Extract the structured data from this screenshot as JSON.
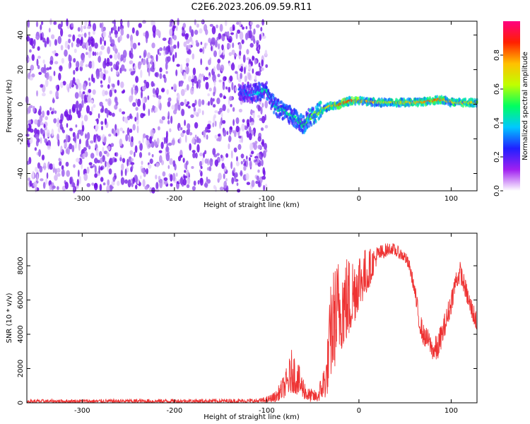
{
  "figure": {
    "title": "C2E6.2023.206.09.59.R11"
  },
  "chart_data": [
    {
      "type": "heatmap",
      "name": "spectrogram",
      "xlabel": "Height of straight line (km)",
      "ylabel": "Frequency (Hz)",
      "xlim": [
        -360,
        128
      ],
      "ylim": [
        -50,
        48
      ],
      "xticks": [
        -300,
        -200,
        -100,
        0,
        100
      ],
      "xtick_labels": [
        "-300",
        "-200",
        "-100",
        "0",
        "100"
      ],
      "yticks": [
        -40,
        -20,
        0,
        20,
        40
      ],
      "ytick_labels": [
        "-40",
        "-20",
        "0",
        "20",
        "40"
      ],
      "colorbar": {
        "label": "Normalized spectral amplitude",
        "range": [
          0,
          1
        ],
        "ticks": [
          0.0,
          0.2,
          0.4,
          0.6,
          0.8
        ],
        "tick_labels": [
          "0.0",
          "0.2",
          "0.4",
          "0.6",
          "0.8"
        ],
        "colormap": "gist_rainbow_r",
        "stops": [
          "#ffffff",
          "#a020f0",
          "#2020ff",
          "#00c8ff",
          "#00ff60",
          "#c0ff00",
          "#ffc000",
          "#ff2000",
          "#ff0080"
        ]
      },
      "noise_region_x": [
        -360,
        -100
      ],
      "signal_track": [
        {
          "x": -130,
          "y": 8,
          "a": 0.3
        },
        {
          "x": -120,
          "y": 6,
          "a": 0.35
        },
        {
          "x": -100,
          "y": 8,
          "a": 0.45
        },
        {
          "x": -95,
          "y": 2,
          "a": 0.4
        },
        {
          "x": -90,
          "y": -2,
          "a": 0.45
        },
        {
          "x": -80,
          "y": -4,
          "a": 0.45
        },
        {
          "x": -70,
          "y": -8,
          "a": 0.45
        },
        {
          "x": -60,
          "y": -12,
          "a": 0.5
        },
        {
          "x": -55,
          "y": -8,
          "a": 0.55
        },
        {
          "x": -45,
          "y": -5,
          "a": 0.6
        },
        {
          "x": -40,
          "y": -3,
          "a": 0.65
        },
        {
          "x": -30,
          "y": -1,
          "a": 0.75
        },
        {
          "x": -20,
          "y": 0,
          "a": 0.85
        },
        {
          "x": -10,
          "y": 2,
          "a": 0.85
        },
        {
          "x": 0,
          "y": 2,
          "a": 0.8
        },
        {
          "x": 20,
          "y": 1,
          "a": 0.7
        },
        {
          "x": 40,
          "y": 1,
          "a": 0.7
        },
        {
          "x": 60,
          "y": 1,
          "a": 0.75
        },
        {
          "x": 80,
          "y": 2,
          "a": 0.85
        },
        {
          "x": 90,
          "y": 3,
          "a": 0.8
        },
        {
          "x": 100,
          "y": 1,
          "a": 0.7
        },
        {
          "x": 110,
          "y": 1,
          "a": 0.75
        },
        {
          "x": 128,
          "y": 1,
          "a": 0.7
        }
      ]
    },
    {
      "type": "line",
      "name": "snr",
      "xlabel": "Height of straight line (km)",
      "ylabel": "SNR (10 * v/v)",
      "xlim": [
        -360,
        128
      ],
      "ylim": [
        0,
        9900
      ],
      "xticks": [
        -300,
        -200,
        -100,
        0,
        100
      ],
      "xtick_labels": [
        "-300",
        "-200",
        "-100",
        "0",
        "100"
      ],
      "yticks": [
        0,
        2000,
        4000,
        6000,
        8000
      ],
      "ytick_labels": [
        "0",
        "2000",
        "4000",
        "6000",
        "8000"
      ],
      "color": "#ee3333",
      "envelope": [
        {
          "x": -360,
          "lo": 0,
          "hi": 200
        },
        {
          "x": -110,
          "lo": 0,
          "hi": 250
        },
        {
          "x": -100,
          "lo": 20,
          "hi": 350
        },
        {
          "x": -90,
          "lo": 50,
          "hi": 700
        },
        {
          "x": -80,
          "lo": 300,
          "hi": 1800
        },
        {
          "x": -72,
          "lo": 600,
          "hi": 3300
        },
        {
          "x": -65,
          "lo": 400,
          "hi": 2200
        },
        {
          "x": -55,
          "lo": 50,
          "hi": 900
        },
        {
          "x": -45,
          "lo": 50,
          "hi": 700
        },
        {
          "x": -35,
          "lo": 300,
          "hi": 3000
        },
        {
          "x": -30,
          "lo": 1500,
          "hi": 7600
        },
        {
          "x": -20,
          "lo": 3000,
          "hi": 9000
        },
        {
          "x": -10,
          "lo": 3800,
          "hi": 8700
        },
        {
          "x": 0,
          "lo": 5500,
          "hi": 9200
        },
        {
          "x": 10,
          "lo": 6500,
          "hi": 9000
        },
        {
          "x": 20,
          "lo": 8200,
          "hi": 9200
        },
        {
          "x": 35,
          "lo": 8700,
          "hi": 9400
        },
        {
          "x": 50,
          "lo": 8200,
          "hi": 8900
        },
        {
          "x": 55,
          "lo": 7600,
          "hi": 8300
        },
        {
          "x": 60,
          "lo": 6300,
          "hi": 7200
        },
        {
          "x": 65,
          "lo": 4300,
          "hi": 5600
        },
        {
          "x": 70,
          "lo": 3300,
          "hi": 4600
        },
        {
          "x": 75,
          "lo": 3200,
          "hi": 4300
        },
        {
          "x": 80,
          "lo": 2500,
          "hi": 3800
        },
        {
          "x": 85,
          "lo": 2400,
          "hi": 4000
        },
        {
          "x": 90,
          "lo": 3300,
          "hi": 4800
        },
        {
          "x": 95,
          "lo": 4200,
          "hi": 5600
        },
        {
          "x": 100,
          "lo": 5200,
          "hi": 6700
        },
        {
          "x": 105,
          "lo": 6600,
          "hi": 7800
        },
        {
          "x": 110,
          "lo": 7000,
          "hi": 8300
        },
        {
          "x": 115,
          "lo": 6200,
          "hi": 7300
        },
        {
          "x": 120,
          "lo": 5200,
          "hi": 6500
        },
        {
          "x": 128,
          "lo": 4100,
          "hi": 5300
        }
      ]
    }
  ]
}
